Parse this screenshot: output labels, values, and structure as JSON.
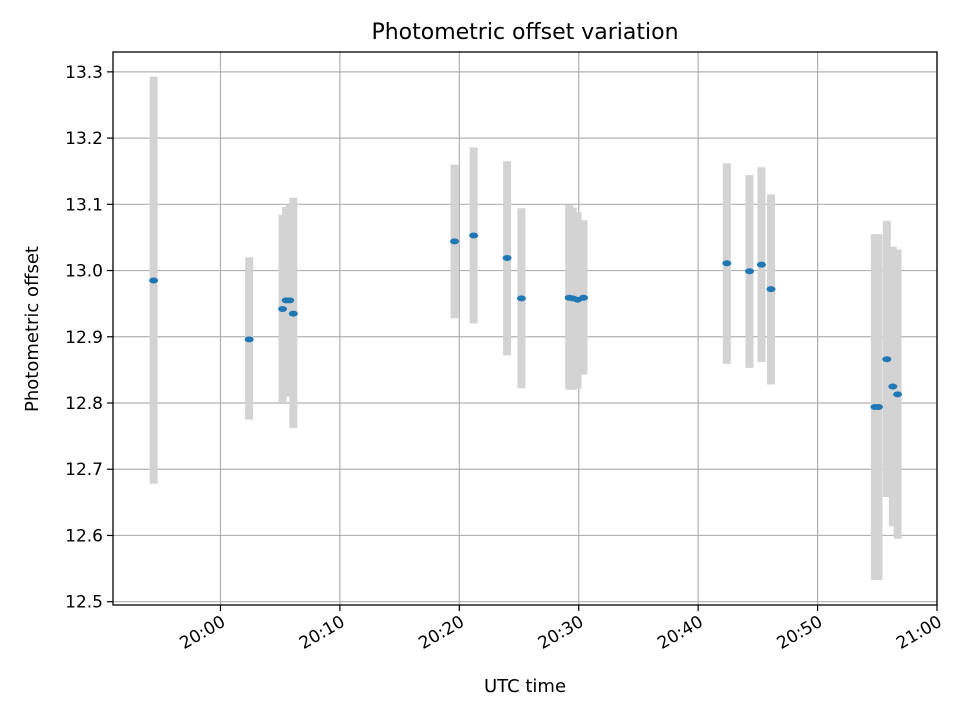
{
  "chart_data": {
    "type": "scatter",
    "title": "Photometric offset variation",
    "xlabel": "UTC time",
    "ylabel": "Photometric offset",
    "grid": true,
    "x_unit": "minutes after 20:00 UTC",
    "xlim": [
      "19:51",
      "21:00"
    ],
    "ylim": [
      12.495,
      13.33
    ],
    "x_ticks": [
      "20:00",
      "20:10",
      "20:20",
      "20:30",
      "20:40",
      "20:50",
      "21:00"
    ],
    "y_ticks": [
      "12.5",
      "12.6",
      "12.7",
      "12.8",
      "12.9",
      "13.0",
      "13.1",
      "13.2",
      "13.3"
    ],
    "colors": {
      "point": "#1f77b4",
      "errorbar": "#d3d3d3"
    },
    "points": [
      {
        "x": "19:54.4",
        "y": 12.985,
        "ylow": 12.678,
        "yhigh": 13.293
      },
      {
        "x": "20:02.4",
        "y": 12.896,
        "ylow": 12.775,
        "yhigh": 13.02
      },
      {
        "x": "20:05.2",
        "y": 12.942,
        "ylow": 12.8,
        "yhigh": 13.084
      },
      {
        "x": "20:05.5",
        "y": 12.955,
        "ylow": 12.81,
        "yhigh": 13.096
      },
      {
        "x": "20:05.8",
        "y": 12.955,
        "ylow": 12.81,
        "yhigh": 13.1
      },
      {
        "x": "20:06.1",
        "y": 12.935,
        "ylow": 12.762,
        "yhigh": 13.11
      },
      {
        "x": "20:19.6",
        "y": 13.044,
        "ylow": 12.928,
        "yhigh": 13.16
      },
      {
        "x": "20:21.2",
        "y": 13.053,
        "ylow": 12.92,
        "yhigh": 13.186
      },
      {
        "x": "20:24.0",
        "y": 13.019,
        "ylow": 12.872,
        "yhigh": 13.165
      },
      {
        "x": "20:25.2",
        "y": 12.958,
        "ylow": 12.822,
        "yhigh": 13.094
      },
      {
        "x": "20:29.2",
        "y": 12.959,
        "ylow": 12.82,
        "yhigh": 13.099
      },
      {
        "x": "20:29.5",
        "y": 12.958,
        "ylow": 12.82,
        "yhigh": 13.095
      },
      {
        "x": "20:29.9",
        "y": 12.956,
        "ylow": 12.822,
        "yhigh": 13.088
      },
      {
        "x": "20:30.4",
        "y": 12.959,
        "ylow": 12.843,
        "yhigh": 13.076
      },
      {
        "x": "20:42.4",
        "y": 13.011,
        "ylow": 12.859,
        "yhigh": 13.162
      },
      {
        "x": "20:44.3",
        "y": 12.999,
        "ylow": 12.853,
        "yhigh": 13.144
      },
      {
        "x": "20:45.3",
        "y": 13.009,
        "ylow": 12.862,
        "yhigh": 13.156
      },
      {
        "x": "20:46.1",
        "y": 12.972,
        "ylow": 12.828,
        "yhigh": 13.115
      },
      {
        "x": "20:54.8",
        "y": 12.794,
        "ylow": 12.533,
        "yhigh": 13.055
      },
      {
        "x": "20:55.1",
        "y": 12.794,
        "ylow": 12.533,
        "yhigh": 13.055
      },
      {
        "x": "20:55.8",
        "y": 12.866,
        "ylow": 12.658,
        "yhigh": 13.075
      },
      {
        "x": "20:56.3",
        "y": 12.825,
        "ylow": 12.614,
        "yhigh": 13.036
      },
      {
        "x": "20:56.7",
        "y": 12.813,
        "ylow": 12.595,
        "yhigh": 13.032
      }
    ]
  }
}
